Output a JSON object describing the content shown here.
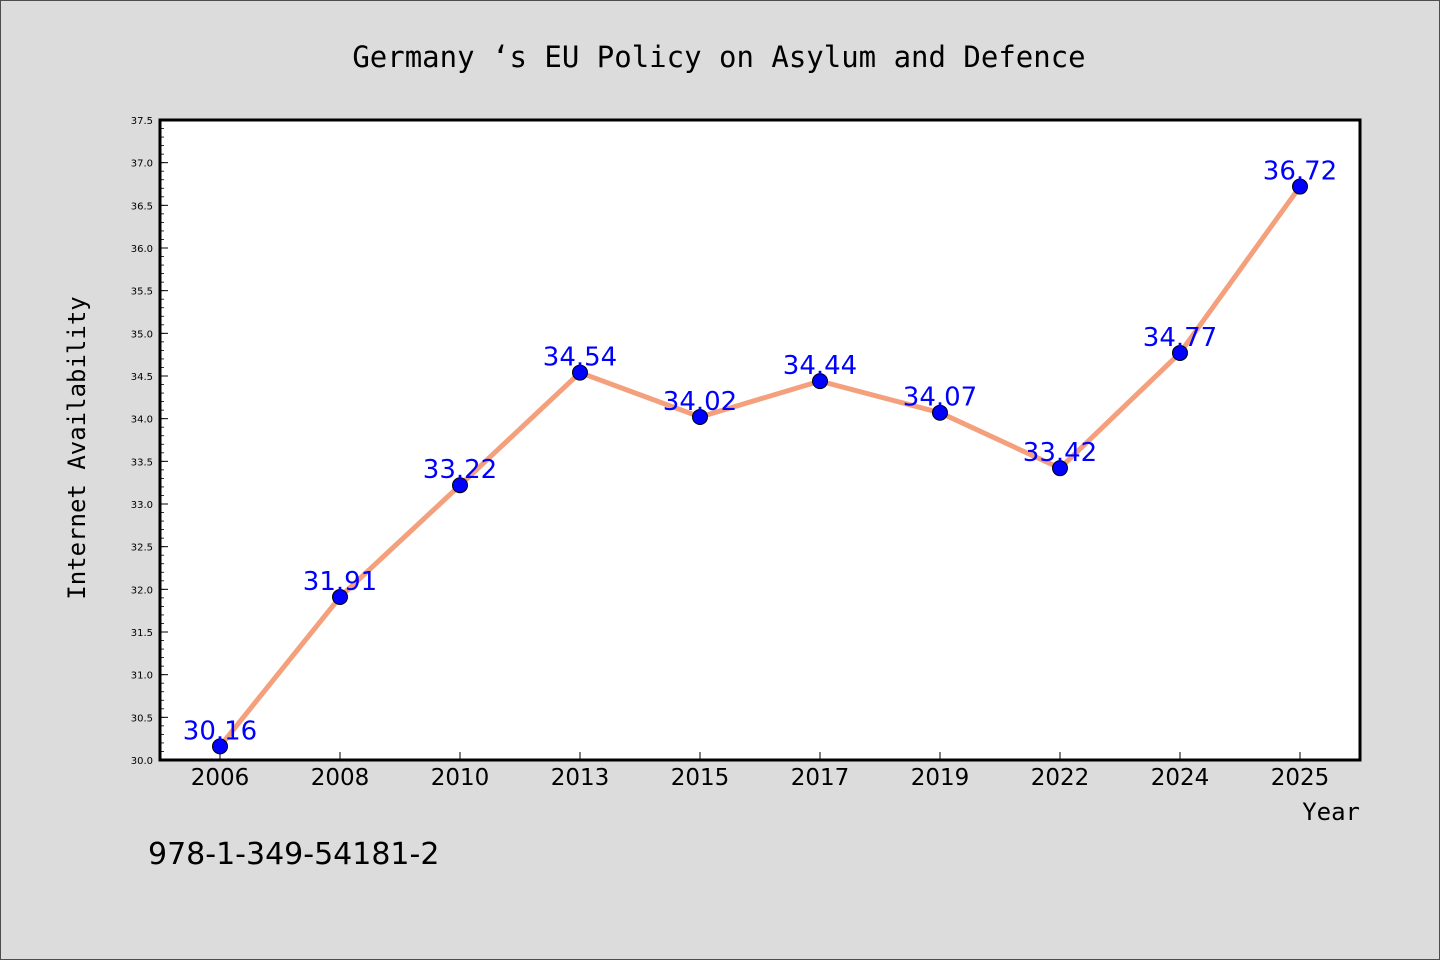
{
  "chart_data": {
    "type": "line",
    "title": "Germany ‘s EU Policy on Asylum and Defence",
    "xlabel": "Year",
    "ylabel": "Internet Availability",
    "categories": [
      "2006",
      "2008",
      "2010",
      "2013",
      "2015",
      "2017",
      "2019",
      "2022",
      "2024",
      "2025"
    ],
    "series": [
      {
        "values": [
          30.16,
          31.91,
          33.22,
          34.54,
          34.02,
          34.44,
          34.07,
          33.42,
          34.77,
          36.72
        ]
      }
    ],
    "data_labels": [
      "30.16",
      "31.91",
      "33.22",
      "34.54",
      "34.02",
      "34.44",
      "34.07",
      "33.42",
      "34.77",
      "36.72"
    ],
    "ylim": [
      30.0,
      37.5
    ],
    "yticks": [
      "30.0",
      "30.5",
      "31.0",
      "31.5",
      "32.0",
      "32.5",
      "33.0",
      "33.5",
      "34.0",
      "34.5",
      "35.0",
      "35.5",
      "36.0",
      "36.5",
      "37.0",
      "37.5"
    ],
    "grid": false,
    "legend": "none",
    "colors": {
      "line": "#f4a07c",
      "marker": "#0000ff",
      "label": "#0000ff",
      "plot_background": "#ffffff",
      "page_background": "#dcdcdc"
    }
  },
  "footnote": "978-1-349-54181-2"
}
